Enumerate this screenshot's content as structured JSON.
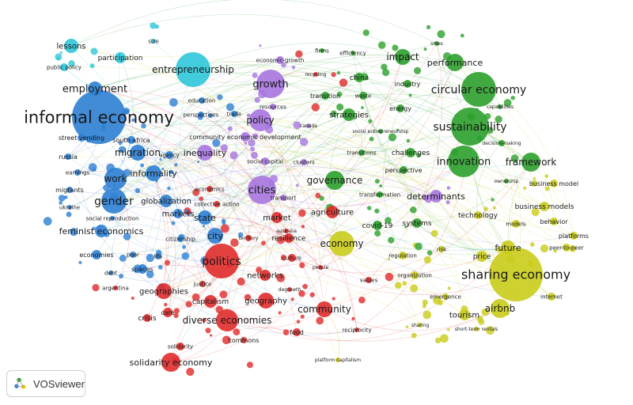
{
  "app": {
    "brand": "VOSviewer"
  },
  "clusters": [
    {
      "id": "blue",
      "color": "#2d7fd3"
    },
    {
      "id": "red",
      "color": "#e02b2b"
    },
    {
      "id": "green",
      "color": "#2ca02c"
    },
    {
      "id": "yellow",
      "color": "#c9cc1a"
    },
    {
      "id": "purple",
      "color": "#a775e0"
    },
    {
      "id": "cyan",
      "color": "#2ec7d9"
    }
  ],
  "terms": [
    {
      "label": "informal economy",
      "cluster": "blue"
    },
    {
      "label": "employment",
      "cluster": "blue"
    },
    {
      "label": "migration",
      "cluster": "blue"
    },
    {
      "label": "informality",
      "cluster": "blue"
    },
    {
      "label": "work",
      "cluster": "blue"
    },
    {
      "label": "gender",
      "cluster": "blue"
    },
    {
      "label": "globalization",
      "cluster": "blue"
    },
    {
      "label": "feminist economics",
      "cluster": "blue"
    },
    {
      "label": "state",
      "cluster": "blue"
    },
    {
      "label": "city",
      "cluster": "blue"
    },
    {
      "label": "markets",
      "cluster": "blue"
    },
    {
      "label": "street vending",
      "cluster": "blue"
    },
    {
      "label": "south africa",
      "cluster": "blue"
    },
    {
      "label": "agency",
      "cluster": "blue"
    },
    {
      "label": "russia",
      "cluster": "blue"
    },
    {
      "label": "earnings",
      "cluster": "blue"
    },
    {
      "label": "migrants",
      "cluster": "blue"
    },
    {
      "label": "ukraine",
      "cluster": "blue"
    },
    {
      "label": "social reproduction",
      "cluster": "blue"
    },
    {
      "label": "economies",
      "cluster": "blue"
    },
    {
      "label": "poor",
      "cluster": "blue"
    },
    {
      "label": "life",
      "cluster": "blue"
    },
    {
      "label": "spaces",
      "cluster": "blue"
    },
    {
      "label": "debt",
      "cluster": "blue"
    },
    {
      "label": "citizenship",
      "cluster": "blue"
    },
    {
      "label": "education",
      "cluster": "blue"
    },
    {
      "label": "perspectives",
      "cluster": "blue"
    },
    {
      "label": "trade",
      "cluster": "blue"
    },
    {
      "label": "lessons",
      "cluster": "cyan"
    },
    {
      "label": "public policy",
      "cluster": "cyan"
    },
    {
      "label": "participation",
      "cluster": "cyan"
    },
    {
      "label": "entrepreneurship",
      "cluster": "cyan"
    },
    {
      "label": "size",
      "cluster": "cyan"
    },
    {
      "label": "growth",
      "cluster": "purple"
    },
    {
      "label": "economic-growth",
      "cluster": "purple"
    },
    {
      "label": "policy",
      "cluster": "purple"
    },
    {
      "label": "resources",
      "cluster": "purple"
    },
    {
      "label": "community economic development",
      "cluster": "purple"
    },
    {
      "label": "inequality",
      "cluster": "purple"
    },
    {
      "label": "social capital",
      "cluster": "purple"
    },
    {
      "label": "clusters",
      "cluster": "purple"
    },
    {
      "label": "cities",
      "cluster": "purple"
    },
    {
      "label": "transport",
      "cluster": "purple"
    },
    {
      "label": "canada",
      "cluster": "purple"
    },
    {
      "label": "economics",
      "cluster": "red"
    },
    {
      "label": "collective action",
      "cluster": "red"
    },
    {
      "label": "market",
      "cluster": "red"
    },
    {
      "label": "australia",
      "cluster": "red"
    },
    {
      "label": "resilience",
      "cluster": "red"
    },
    {
      "label": "territory",
      "cluster": "red"
    },
    {
      "label": "politics",
      "cluster": "red"
    },
    {
      "label": "culture",
      "cluster": "red"
    },
    {
      "label": "networks",
      "cluster": "red"
    },
    {
      "label": "justice",
      "cluster": "red"
    },
    {
      "label": "geographies",
      "cluster": "red"
    },
    {
      "label": "capitalism",
      "cluster": "red"
    },
    {
      "label": "geography",
      "cluster": "red"
    },
    {
      "label": "degrowth",
      "cluster": "red"
    },
    {
      "label": "argentina",
      "cluster": "red"
    },
    {
      "label": "care",
      "cluster": "red"
    },
    {
      "label": "crisis",
      "cluster": "red"
    },
    {
      "label": "diverse economies",
      "cluster": "red"
    },
    {
      "label": "commons",
      "cluster": "red"
    },
    {
      "label": "solidarity",
      "cluster": "red"
    },
    {
      "label": "solidarity economy",
      "cluster": "red"
    },
    {
      "label": "food",
      "cluster": "red"
    },
    {
      "label": "community",
      "cluster": "red"
    },
    {
      "label": "reciprocity",
      "cluster": "red"
    },
    {
      "label": "people",
      "cluster": "red"
    },
    {
      "label": "values",
      "cluster": "red"
    },
    {
      "label": "recycling",
      "cluster": "red"
    },
    {
      "label": "agriculture",
      "cluster": "red"
    },
    {
      "label": "firms",
      "cluster": "green"
    },
    {
      "label": "efficiency",
      "cluster": "green"
    },
    {
      "label": "impact",
      "cluster": "green"
    },
    {
      "label": "smes",
      "cluster": "green"
    },
    {
      "label": "performance",
      "cluster": "green"
    },
    {
      "label": "china",
      "cluster": "green"
    },
    {
      "label": "industry",
      "cluster": "green"
    },
    {
      "label": "circular economy",
      "cluster": "green"
    },
    {
      "label": "transition",
      "cluster": "green"
    },
    {
      "label": "waste",
      "cluster": "green"
    },
    {
      "label": "energy",
      "cluster": "green"
    },
    {
      "label": "capabilities",
      "cluster": "green"
    },
    {
      "label": "strategies",
      "cluster": "green"
    },
    {
      "label": "sustainability",
      "cluster": "green"
    },
    {
      "label": "social entrepreneurship",
      "cluster": "green"
    },
    {
      "label": "decision-making",
      "cluster": "green"
    },
    {
      "label": "transitions",
      "cluster": "green"
    },
    {
      "label": "challenges",
      "cluster": "green"
    },
    {
      "label": "innovation",
      "cluster": "green"
    },
    {
      "label": "framework",
      "cluster": "green"
    },
    {
      "label": "perspective",
      "cluster": "green"
    },
    {
      "label": "governance",
      "cluster": "green"
    },
    {
      "label": "ownership",
      "cluster": "green"
    },
    {
      "label": "transformation",
      "cluster": "green"
    },
    {
      "label": "determinants",
      "cluster": "purple"
    },
    {
      "label": "systems",
      "cluster": "green"
    },
    {
      "label": "covid-19",
      "cluster": "green"
    },
    {
      "label": "business model",
      "cluster": "yellow"
    },
    {
      "label": "business models",
      "cluster": "yellow"
    },
    {
      "label": "technology",
      "cluster": "yellow"
    },
    {
      "label": "behavior",
      "cluster": "yellow"
    },
    {
      "label": "models",
      "cluster": "yellow"
    },
    {
      "label": "platforms",
      "cluster": "yellow"
    },
    {
      "label": "economy",
      "cluster": "yellow"
    },
    {
      "label": "regulation",
      "cluster": "yellow"
    },
    {
      "label": "risk",
      "cluster": "yellow"
    },
    {
      "label": "price",
      "cluster": "yellow"
    },
    {
      "label": "future",
      "cluster": "yellow"
    },
    {
      "label": "peer-to-peer",
      "cluster": "yellow"
    },
    {
      "label": "organization",
      "cluster": "yellow"
    },
    {
      "label": "sharing economy",
      "cluster": "yellow"
    },
    {
      "label": "emergence",
      "cluster": "yellow"
    },
    {
      "label": "internet",
      "cluster": "yellow"
    },
    {
      "label": "tourism",
      "cluster": "yellow"
    },
    {
      "label": "airbnb",
      "cluster": "yellow"
    },
    {
      "label": "sharing",
      "cluster": "yellow"
    },
    {
      "label": "short-term rentals",
      "cluster": "yellow"
    },
    {
      "label": "platform capitalism",
      "cluster": "yellow"
    }
  ]
}
